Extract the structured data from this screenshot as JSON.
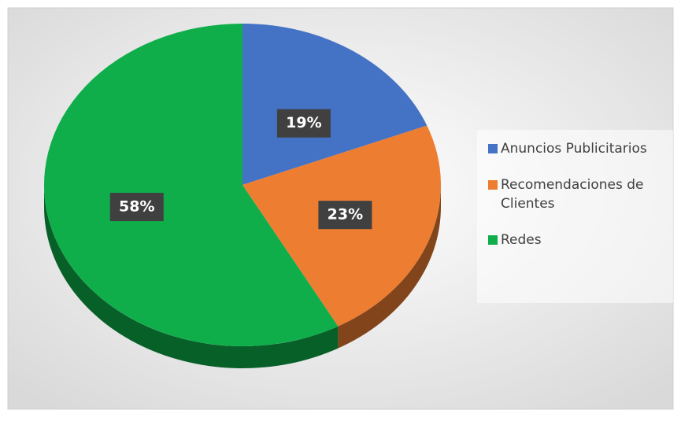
{
  "chart_data": {
    "type": "pie",
    "categories": [
      "Anuncios Publicitarios",
      "Recomendaciones de Clientes",
      "Redes"
    ],
    "values": [
      19,
      23,
      58
    ],
    "value_labels": [
      "19%",
      "23%",
      "58%"
    ],
    "colors": [
      "#4472c4",
      "#ed7d31",
      "#0fae4b"
    ],
    "legend": "right"
  }
}
